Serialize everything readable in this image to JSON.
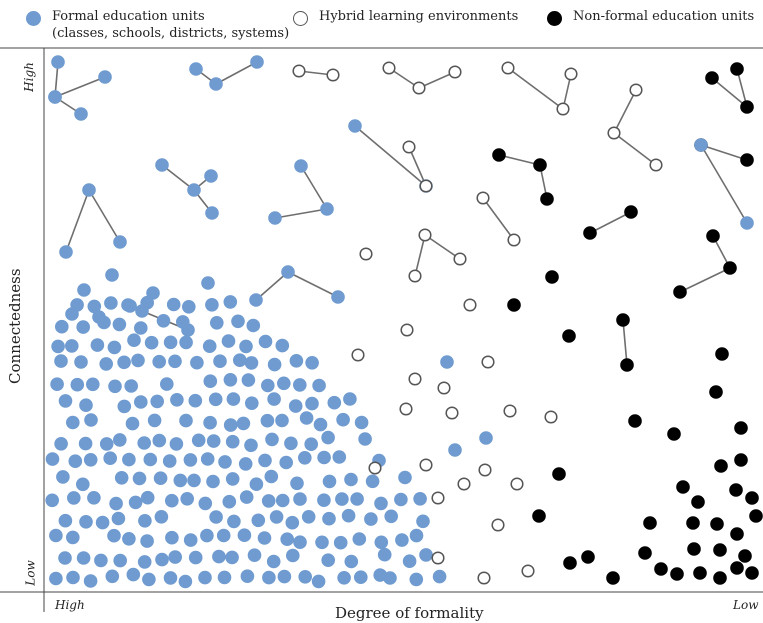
{
  "legend": {
    "formal": {
      "label": "Formal education units",
      "sublabel": "(classes, schools, districts, systems)",
      "color": "#6f9bd0"
    },
    "hybrid": {
      "label": "Hybrid learning environments",
      "color": "#ffffff"
    },
    "nonformal": {
      "label": "Non-formal education units",
      "color": "#000000"
    }
  },
  "axes": {
    "xlabel": "Degree of formality",
    "ylabel": "Connectedness",
    "x_low_end": "High",
    "x_high_end": "Low",
    "y_top": "High",
    "y_bottom": "Low"
  },
  "colors": {
    "formal": "#6f9bd0",
    "hybrid_stroke": "#555555",
    "nonformal": "#000000",
    "link": "#6e6e6e",
    "axis": "#444444"
  }
}
